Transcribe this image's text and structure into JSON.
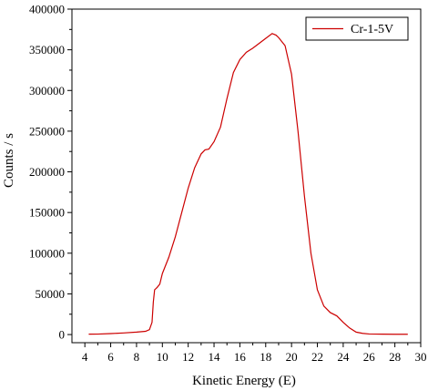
{
  "chart_data": {
    "type": "line",
    "title": "",
    "xlabel": "Kinetic Energy (E)",
    "ylabel": "Counts / s",
    "xlim": [
      3,
      30
    ],
    "ylim": [
      -10000,
      400000
    ],
    "x_ticks": [
      4,
      6,
      8,
      10,
      12,
      14,
      16,
      18,
      20,
      22,
      24,
      26,
      28,
      30
    ],
    "y_ticks": [
      0,
      50000,
      100000,
      150000,
      200000,
      250000,
      300000,
      350000,
      400000
    ],
    "grid": false,
    "legend": {
      "placement": "top-right",
      "entries": [
        "Cr-1-5V"
      ]
    },
    "series": [
      {
        "name": "Cr-1-5V",
        "color": "#cc0000",
        "points": [
          [
            4.3,
            500
          ],
          [
            5.0,
            600
          ],
          [
            6.0,
            1200
          ],
          [
            7.0,
            2000
          ],
          [
            8.0,
            3000
          ],
          [
            8.7,
            4000
          ],
          [
            9.0,
            6000
          ],
          [
            9.2,
            15000
          ],
          [
            9.3,
            40000
          ],
          [
            9.4,
            55000
          ],
          [
            9.6,
            58000
          ],
          [
            9.8,
            62000
          ],
          [
            10.0,
            75000
          ],
          [
            10.5,
            95000
          ],
          [
            11.0,
            120000
          ],
          [
            11.5,
            150000
          ],
          [
            12.0,
            180000
          ],
          [
            12.5,
            205000
          ],
          [
            13.0,
            222000
          ],
          [
            13.3,
            227000
          ],
          [
            13.6,
            228000
          ],
          [
            14.0,
            237000
          ],
          [
            14.5,
            255000
          ],
          [
            15.0,
            290000
          ],
          [
            15.5,
            322000
          ],
          [
            16.0,
            338000
          ],
          [
            16.5,
            347000
          ],
          [
            17.0,
            352000
          ],
          [
            17.5,
            358000
          ],
          [
            18.0,
            364000
          ],
          [
            18.5,
            370000
          ],
          [
            18.8,
            368000
          ],
          [
            19.0,
            365000
          ],
          [
            19.5,
            355000
          ],
          [
            20.0,
            320000
          ],
          [
            20.5,
            250000
          ],
          [
            21.0,
            170000
          ],
          [
            21.5,
            100000
          ],
          [
            22.0,
            55000
          ],
          [
            22.5,
            35000
          ],
          [
            23.0,
            27000
          ],
          [
            23.5,
            23000
          ],
          [
            24.0,
            15000
          ],
          [
            24.5,
            8000
          ],
          [
            25.0,
            3000
          ],
          [
            25.5,
            1500
          ],
          [
            26.0,
            700
          ],
          [
            27.0,
            500
          ],
          [
            28.0,
            400
          ],
          [
            29.0,
            400
          ]
        ]
      }
    ]
  }
}
